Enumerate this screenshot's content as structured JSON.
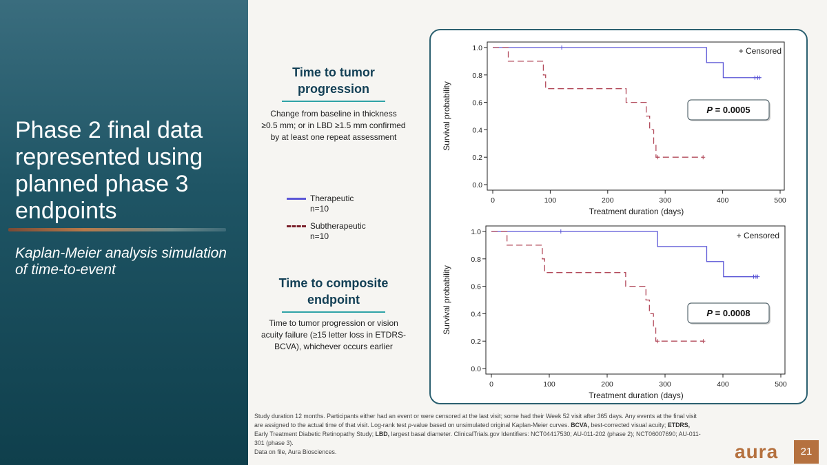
{
  "slide": {
    "title": "Phase 2 final data represented using planned phase 3 endpoints",
    "subtitle": "Kaplan-Meier analysis simulation of time-to-event",
    "page_number": "21",
    "logo_text": "aura"
  },
  "panels": [
    {
      "heading": "Time to tumor progression",
      "description": "Change from baseline in thickness ≥0.5 mm; or in LBD ≥1.5 mm confirmed by at least one repeat assessment"
    },
    {
      "heading": "Time to composite endpoint",
      "description": "Time to tumor progression or vision acuity failure (≥15 letter loss in ETDRS-BCVA), whichever occurs earlier"
    }
  ],
  "legend": [
    {
      "label": "Therapeutic",
      "n": "n=10",
      "color": "#5a55d6",
      "style": "solid"
    },
    {
      "label": "Subtherapeutic",
      "n": "n=10",
      "color": "#7a1f2a",
      "style": "dashed"
    }
  ],
  "footnote": {
    "line1_a": "Study duration 12 months. Participants either had an event or were censored at the last visit; some had their Week 52 visit after 365 days. Any events at the final visit are assigned to the actual time of that visit. Log-rank test ",
    "line1_p": "p",
    "line1_b": "-value based on unsimulated original Kaplan-Meier curves. ",
    "bcva_abbr": "BCVA,",
    "bcva_text": " best-corrected visual acuity; ",
    "etdrs_abbr": "ETDRS,",
    "etdrs_text": " Early Treatment Diabetic Retinopathy Study; ",
    "lbd_abbr": "LBD,",
    "lbd_text": " largest basal diameter. ClinicalTrials.gov Identifiers: NCT04417530; AU-011-202 (phase 2); NCT06007690; AU-011-301 (phase 3).",
    "line2": "Data on file, Aura Biosciences."
  },
  "chart_data": [
    {
      "type": "line",
      "step": true,
      "xlabel": "Treatment duration (days)",
      "ylabel": "Survival probability",
      "xlim": [
        0,
        500
      ],
      "ylim": [
        0,
        1
      ],
      "xticks": [
        "0",
        "100",
        "200",
        "300",
        "400",
        "500"
      ],
      "yticks": [
        "0.0",
        "0.2",
        "0.4",
        "0.6",
        "0.8",
        "1.0"
      ],
      "censored_label": "+ Censored",
      "pvalue_prefix": "P",
      "pvalue_text": " = 0.0005",
      "series": [
        {
          "name": "Therapeutic",
          "color": "#5a55d6",
          "style": "solid",
          "steps": [
            [
              0,
              1.0
            ],
            [
              372,
              0.89
            ],
            [
              401,
              0.78
            ],
            [
              466,
              0.78
            ]
          ],
          "censored": [
            [
              120,
              1.0
            ],
            [
              456,
              0.78
            ],
            [
              461,
              0.78
            ],
            [
              464,
              0.78
            ]
          ]
        },
        {
          "name": "Subtherapeutic",
          "color": "#b2495a",
          "style": "dashed",
          "steps": [
            [
              0,
              1.0
            ],
            [
              27,
              0.9
            ],
            [
              88,
              0.8
            ],
            [
              92,
              0.7
            ],
            [
              232,
              0.6
            ],
            [
              267,
              0.5
            ],
            [
              273,
              0.4
            ],
            [
              280,
              0.3
            ],
            [
              284,
              0.2
            ],
            [
              366,
              0.2
            ]
          ],
          "censored": [
            [
              287,
              0.2
            ],
            [
              366,
              0.2
            ]
          ]
        }
      ]
    },
    {
      "type": "line",
      "step": true,
      "xlabel": "Treatment duration (days)",
      "ylabel": "Survival probability",
      "xlim": [
        0,
        500
      ],
      "ylim": [
        0,
        1
      ],
      "xticks": [
        "0",
        "100",
        "200",
        "300",
        "400",
        "500"
      ],
      "yticks": [
        "0.0",
        "0.2",
        "0.4",
        "0.6",
        "0.8",
        "1.0"
      ],
      "censored_label": "+ Censored",
      "pvalue_prefix": "P",
      "pvalue_text": " = 0.0008",
      "series": [
        {
          "name": "Therapeutic",
          "color": "#5a55d6",
          "style": "solid",
          "steps": [
            [
              0,
              1.0
            ],
            [
              287,
              0.89
            ],
            [
              372,
              0.78
            ],
            [
              401,
              0.67
            ],
            [
              460,
              0.67
            ]
          ],
          "censored": [
            [
              120,
              1.0
            ],
            [
              453,
              0.67
            ],
            [
              457,
              0.67
            ],
            [
              460,
              0.67
            ]
          ]
        },
        {
          "name": "Subtherapeutic",
          "color": "#b2495a",
          "style": "dashed",
          "steps": [
            [
              0,
              1.0
            ],
            [
              27,
              0.9
            ],
            [
              88,
              0.8
            ],
            [
              92,
              0.7
            ],
            [
              232,
              0.6
            ],
            [
              267,
              0.5
            ],
            [
              273,
              0.4
            ],
            [
              280,
              0.3
            ],
            [
              284,
              0.2
            ],
            [
              366,
              0.2
            ]
          ],
          "censored": [
            [
              287,
              0.2
            ],
            [
              366,
              0.2
            ]
          ]
        }
      ]
    }
  ]
}
